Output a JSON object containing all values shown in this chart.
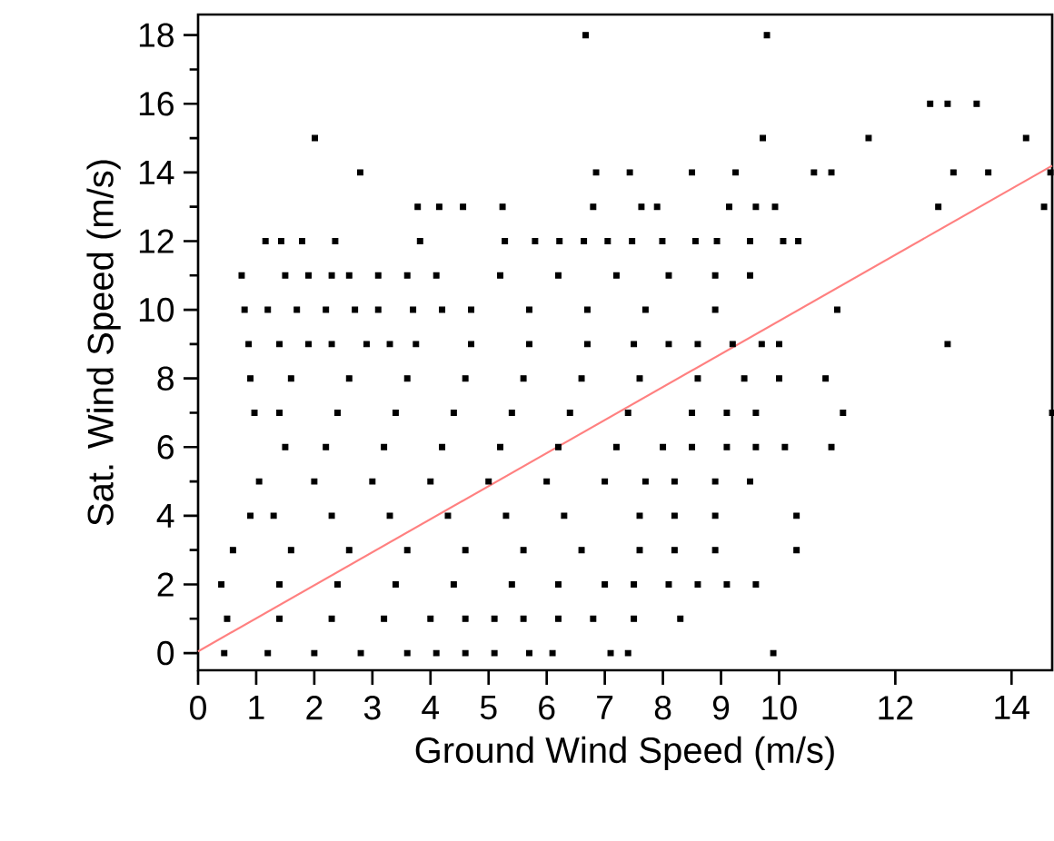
{
  "chart_data": {
    "type": "scatter",
    "xlabel": "Ground Wind Speed (m/s)",
    "ylabel": "Sat. Wind Speed (m/s)",
    "xlim": [
      0,
      14.7
    ],
    "ylim": [
      -0.5,
      18.6
    ],
    "xticks": [
      0,
      1,
      2,
      3,
      4,
      5,
      6,
      7,
      8,
      9,
      10,
      12,
      14
    ],
    "yticks": [
      0,
      2,
      4,
      6,
      8,
      10,
      12,
      14,
      16,
      18
    ],
    "series": [
      {
        "color": "#000000",
        "marker": "square",
        "x": [
          0.45,
          1.2,
          2.0,
          2.8,
          3.6,
          4.1,
          4.6,
          5.1,
          5.7,
          6.1,
          7.1,
          7.4,
          9.9,
          0.5,
          1.4,
          2.3,
          3.2,
          4.0,
          4.6,
          5.1,
          5.6,
          6.2,
          6.8,
          7.5,
          8.3,
          0.4,
          1.4,
          2.4,
          3.4,
          4.4,
          5.4,
          6.2,
          7.0,
          7.5,
          8.1,
          8.6,
          9.1,
          9.6,
          0.6,
          1.6,
          2.6,
          3.6,
          4.6,
          5.6,
          6.6,
          7.6,
          8.2,
          8.9,
          10.3,
          0.9,
          1.3,
          2.3,
          3.3,
          4.3,
          5.3,
          6.3,
          7.6,
          8.2,
          8.9,
          10.3,
          1.05,
          2.0,
          3.0,
          4.0,
          5.0,
          6.0,
          7.0,
          7.7,
          8.2,
          8.9,
          9.5,
          1.5,
          2.2,
          3.2,
          4.2,
          5.2,
          6.2,
          7.2,
          8.0,
          8.5,
          9.1,
          9.6,
          10.1,
          10.9,
          0.97,
          1.4,
          2.4,
          3.4,
          4.4,
          5.4,
          6.4,
          7.4,
          8.5,
          9.1,
          9.6,
          11.1,
          14.7,
          0.9,
          1.6,
          2.6,
          3.6,
          4.6,
          5.6,
          6.6,
          7.6,
          8.6,
          9.4,
          10.0,
          10.8,
          0.87,
          1.4,
          1.9,
          2.3,
          2.9,
          3.3,
          3.75,
          4.7,
          5.7,
          6.7,
          7.5,
          8.1,
          8.6,
          9.2,
          9.7,
          10.0,
          12.9,
          0.8,
          1.2,
          1.7,
          2.2,
          2.7,
          3.1,
          3.7,
          4.2,
          4.7,
          5.7,
          6.7,
          7.7,
          8.9,
          11.0,
          0.75,
          1.5,
          1.9,
          2.3,
          2.6,
          3.1,
          3.6,
          4.1,
          5.2,
          6.2,
          7.2,
          8.1,
          8.9,
          9.5,
          1.16,
          1.43,
          1.79,
          2.36,
          3.82,
          5.28,
          5.8,
          6.22,
          6.64,
          7.05,
          7.47,
          7.99,
          8.56,
          8.93,
          9.5,
          10.07,
          10.33,
          3.78,
          4.15,
          4.56,
          5.24,
          6.8,
          7.63,
          7.9,
          9.14,
          9.6,
          9.93,
          12.74,
          14.56,
          2.79,
          6.85,
          7.43,
          8.5,
          9.25,
          10.6,
          10.9,
          13.0,
          13.6,
          14.67,
          2.01,
          9.72,
          11.54,
          14.25,
          12.6,
          12.9,
          13.4,
          6.67,
          9.79
        ],
        "values": [
          0,
          0,
          0,
          0,
          0,
          0,
          0,
          0,
          0,
          0,
          0,
          0,
          0,
          1,
          1,
          1,
          1,
          1,
          1,
          1,
          1,
          1,
          1,
          1,
          1,
          2,
          2,
          2,
          2,
          2,
          2,
          2,
          2,
          2,
          2,
          2,
          2,
          2,
          3,
          3,
          3,
          3,
          3,
          3,
          3,
          3,
          3,
          3,
          3,
          4,
          4,
          4,
          4,
          4,
          4,
          4,
          4,
          4,
          4,
          4,
          5,
          5,
          5,
          5,
          5,
          5,
          5,
          5,
          5,
          5,
          5,
          6,
          6,
          6,
          6,
          6,
          6,
          6,
          6,
          6,
          6,
          6,
          6,
          6,
          7,
          7,
          7,
          7,
          7,
          7,
          7,
          7,
          7,
          7,
          7,
          7,
          7,
          8,
          8,
          8,
          8,
          8,
          8,
          8,
          8,
          8,
          8,
          8,
          8,
          9,
          9,
          9,
          9,
          9,
          9,
          9,
          9,
          9,
          9,
          9,
          9,
          9,
          9,
          9,
          9,
          9,
          10,
          10,
          10,
          10,
          10,
          10,
          10,
          10,
          10,
          10,
          10,
          10,
          10,
          10,
          11,
          11,
          11,
          11,
          11,
          11,
          11,
          11,
          11,
          11,
          11,
          11,
          11,
          11,
          12,
          12,
          12,
          12,
          12,
          12,
          12,
          12,
          12,
          12,
          12,
          12,
          12,
          12,
          12,
          12,
          12,
          13,
          13,
          13,
          13,
          13,
          13,
          13,
          13,
          13,
          13,
          13,
          13,
          14,
          14,
          14,
          14,
          14,
          14,
          14,
          14,
          14,
          14,
          15,
          15,
          15,
          15,
          16,
          16,
          16,
          18,
          18
        ]
      },
      {
        "type": "line",
        "color": "#ff8080",
        "marker": "none",
        "line_style": "solid",
        "x": [
          0,
          14.7
        ],
        "values": [
          0.05,
          14.2
        ]
      }
    ]
  }
}
